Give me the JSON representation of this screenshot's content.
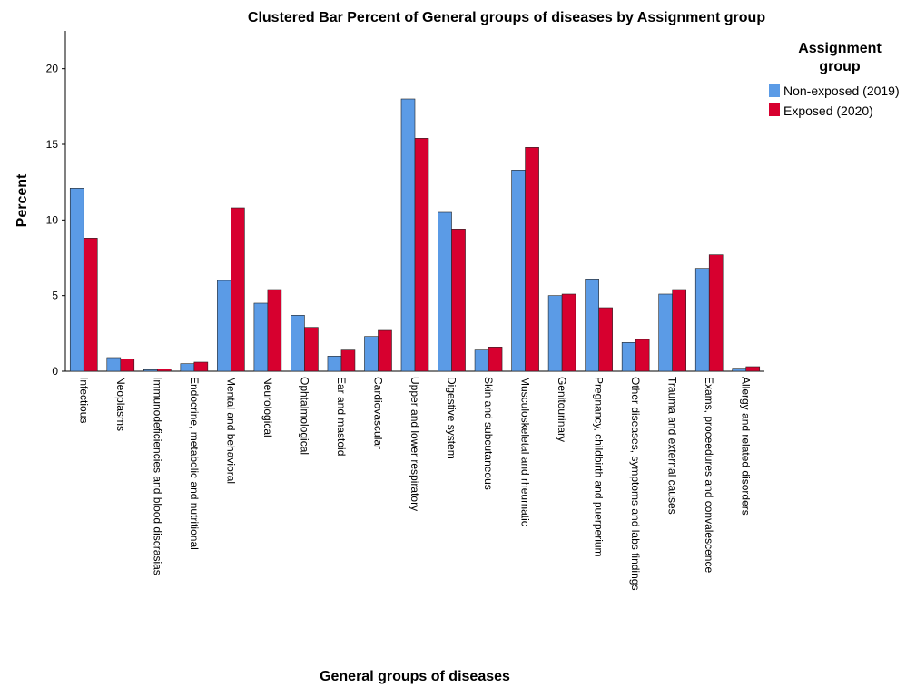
{
  "chart_data": {
    "type": "bar",
    "title": "Clustered Bar Percent of General groups of diseases by Assignment group",
    "xlabel": "General groups of diseases",
    "ylabel": "Percent",
    "ylim": [
      0,
      22.5
    ],
    "yticks": [
      0,
      5,
      10,
      15,
      20
    ],
    "grid": false,
    "legend": {
      "title_line1": "Assignment",
      "title_line2": "group",
      "placement": "top-right"
    },
    "categories": [
      "Infectious",
      "Neoplasms",
      "Immunodeficiencies and blood discrasias",
      "Endocrine, metabolic and nutritional",
      "Mental and behavioral",
      "Neurological",
      "Ophtalmological",
      "Ear and mastoid",
      "Cardiovascular",
      "Upper and lower respiratory",
      "Digestive system",
      "Skin and subcutaneous",
      "Musculoskeletal and rheumatic",
      "Genitourinary",
      "Pregnancy, childbirth and puerperium",
      "Other diseases, symptoms and labs findings",
      "Trauma and external causes",
      "Exams, proceedures and convalescence",
      "Allergy and related disorders"
    ],
    "series": [
      {
        "name": "Non-exposed (2019)",
        "color": "#5b9be6",
        "values": [
          12.1,
          0.9,
          0.1,
          0.5,
          6.0,
          4.5,
          3.7,
          1.0,
          2.3,
          18.0,
          10.5,
          1.4,
          13.3,
          5.0,
          6.1,
          1.9,
          5.1,
          6.8,
          0.2
        ]
      },
      {
        "name": "Exposed (2020)",
        "color": "#d7002f",
        "values": [
          8.8,
          0.8,
          0.15,
          0.6,
          10.8,
          5.4,
          2.9,
          1.4,
          2.7,
          15.4,
          9.4,
          1.6,
          14.8,
          5.1,
          4.2,
          2.1,
          5.4,
          7.7,
          0.3
        ]
      }
    ]
  }
}
